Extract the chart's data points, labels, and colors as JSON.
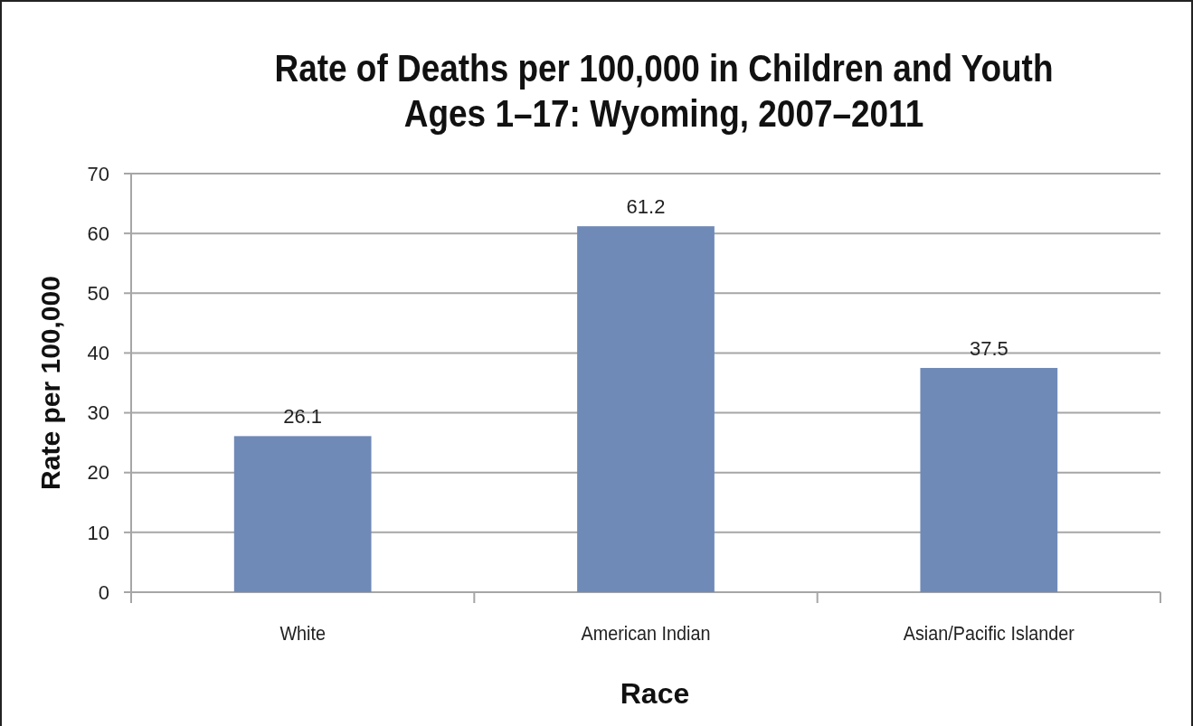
{
  "chart_data": {
    "type": "bar",
    "title": "Rate of Deaths per 100,000 in Children and Youth Ages 1–17: Wyoming, 2007–2011",
    "xlabel": "Race",
    "ylabel": "Rate per 100,000",
    "categories": [
      "White",
      "American Indian",
      "Asian/Pacific Islander"
    ],
    "values": [
      26.1,
      61.2,
      37.5
    ],
    "color": "#6f8ab7",
    "ylim": [
      0,
      70
    ],
    "yticks": [
      0,
      10,
      20,
      30,
      40,
      50,
      60,
      70
    ],
    "grid": "y",
    "data_labels": true
  }
}
